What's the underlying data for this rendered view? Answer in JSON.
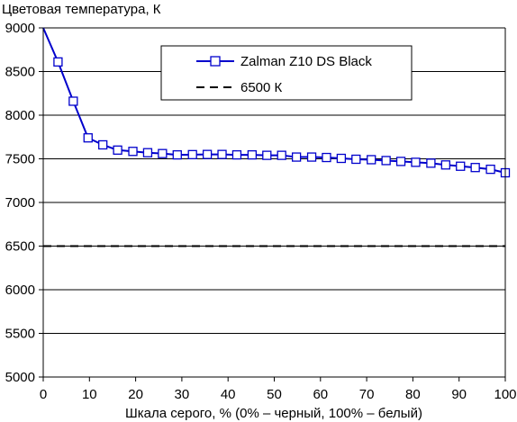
{
  "chart_data": {
    "type": "line",
    "title": "",
    "ylabel": "Цветовая температура, К",
    "xlabel": "Шкала серого, % (0% – черный, 100% – белый)",
    "xlim": [
      0,
      100
    ],
    "ylim": [
      5000,
      9000
    ],
    "xticks": [
      0,
      10,
      20,
      30,
      40,
      50,
      60,
      70,
      80,
      90,
      100
    ],
    "yticks": [
      5000,
      5500,
      6000,
      6500,
      7000,
      7500,
      8000,
      8500,
      9000
    ],
    "grid": "horizontal",
    "legend_position": "top-right",
    "series": [
      {
        "name": "Zalman Z10 DS Black",
        "color": "#0000cc",
        "marker": "square",
        "line_style": "solid",
        "x": [
          0,
          3.2,
          6.5,
          9.7,
          12.9,
          16.1,
          19.4,
          22.6,
          25.8,
          29.0,
          32.3,
          35.5,
          38.7,
          41.9,
          45.2,
          48.4,
          51.6,
          54.8,
          58.1,
          61.3,
          64.5,
          67.7,
          71.0,
          74.2,
          77.4,
          80.6,
          83.9,
          87.1,
          90.3,
          93.5,
          96.8,
          100
        ],
        "y": [
          9000,
          8610,
          8160,
          7740,
          7660,
          7600,
          7585,
          7570,
          7560,
          7545,
          7548,
          7550,
          7550,
          7545,
          7545,
          7540,
          7540,
          7520,
          7520,
          7515,
          7505,
          7495,
          7490,
          7480,
          7470,
          7460,
          7450,
          7430,
          7415,
          7400,
          7380,
          7340
        ],
        "markers_from_index": 1
      },
      {
        "name": "6500 К",
        "color": "#000000",
        "marker": "none",
        "line_style": "dashed",
        "x": [
          0,
          100
        ],
        "y": [
          6500,
          6500
        ]
      }
    ]
  }
}
